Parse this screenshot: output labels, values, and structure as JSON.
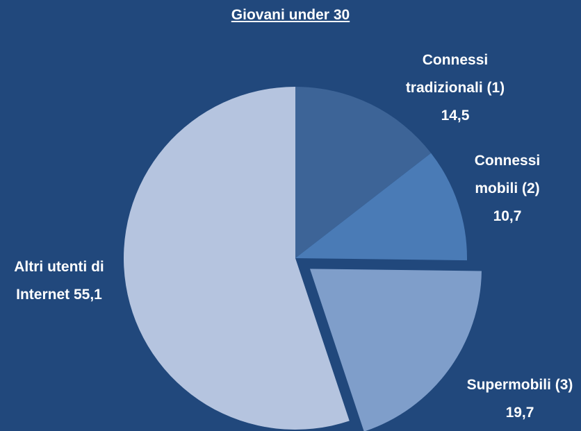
{
  "chart_data": {
    "type": "pie",
    "title": "Giovani under 30",
    "categories": [
      "Connessi tradizionali (1)",
      "Connessi mobili (2)",
      "Supermobili (3)",
      "Altri utenti di Internet"
    ],
    "values": [
      14.5,
      10.7,
      19.7,
      55.1
    ],
    "value_labels": [
      "14,5",
      "10,7",
      "19,7",
      "55,1"
    ],
    "colors": [
      "#3d6497",
      "#4a7bb6",
      "#7f9eca",
      "#b5c4df"
    ],
    "explode": [
      false,
      false,
      true,
      false
    ],
    "background": "#21487c"
  }
}
